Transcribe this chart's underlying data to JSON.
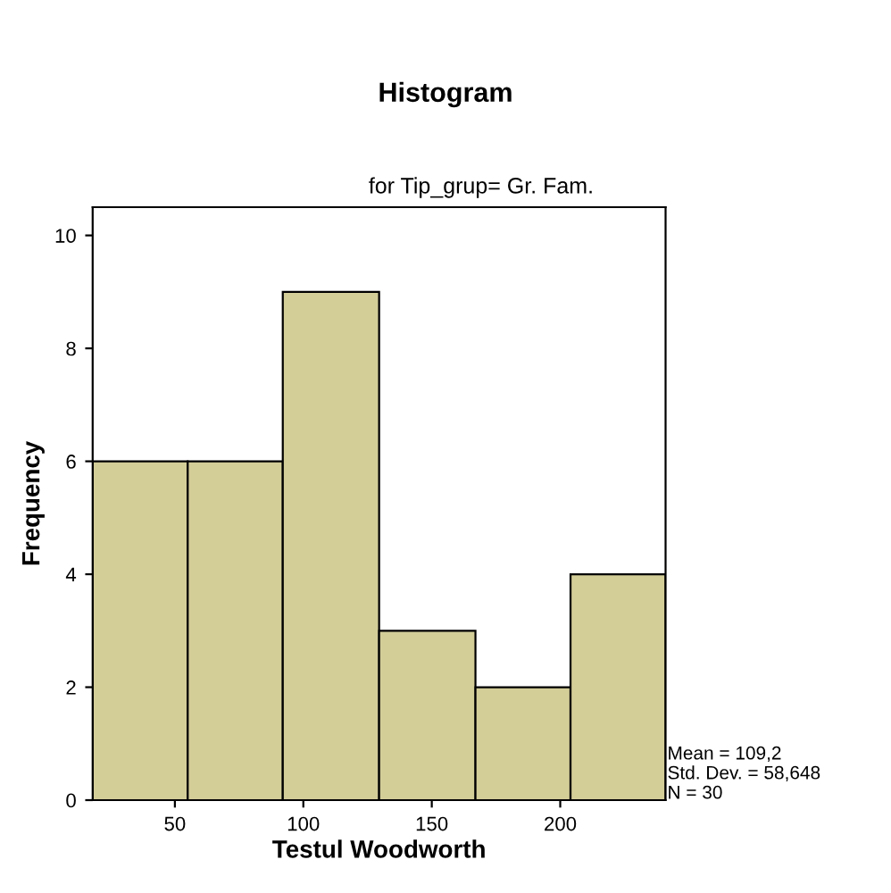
{
  "chart_data": {
    "type": "histogram",
    "title": "Histogram",
    "subtitle": "for Tip_grup= Gr. Fam.",
    "xlabel": "Testul Woodworth",
    "ylabel": "Frequency",
    "bins": [
      18,
      55,
      92,
      129.5,
      167,
      204,
      241
    ],
    "values": [
      6,
      6,
      9,
      3,
      2,
      4
    ],
    "color": "#d3cd98",
    "xlim": [
      18,
      241
    ],
    "xticks": [
      50,
      100,
      150,
      200
    ],
    "ylim": [
      0,
      10.5
    ],
    "yticks": [
      0,
      2,
      4,
      6,
      8,
      10
    ],
    "grid": false,
    "legend": false,
    "annotations": [
      "Mean = 109,2",
      "Std. Dev. = 58,648",
      "N = 30"
    ]
  }
}
